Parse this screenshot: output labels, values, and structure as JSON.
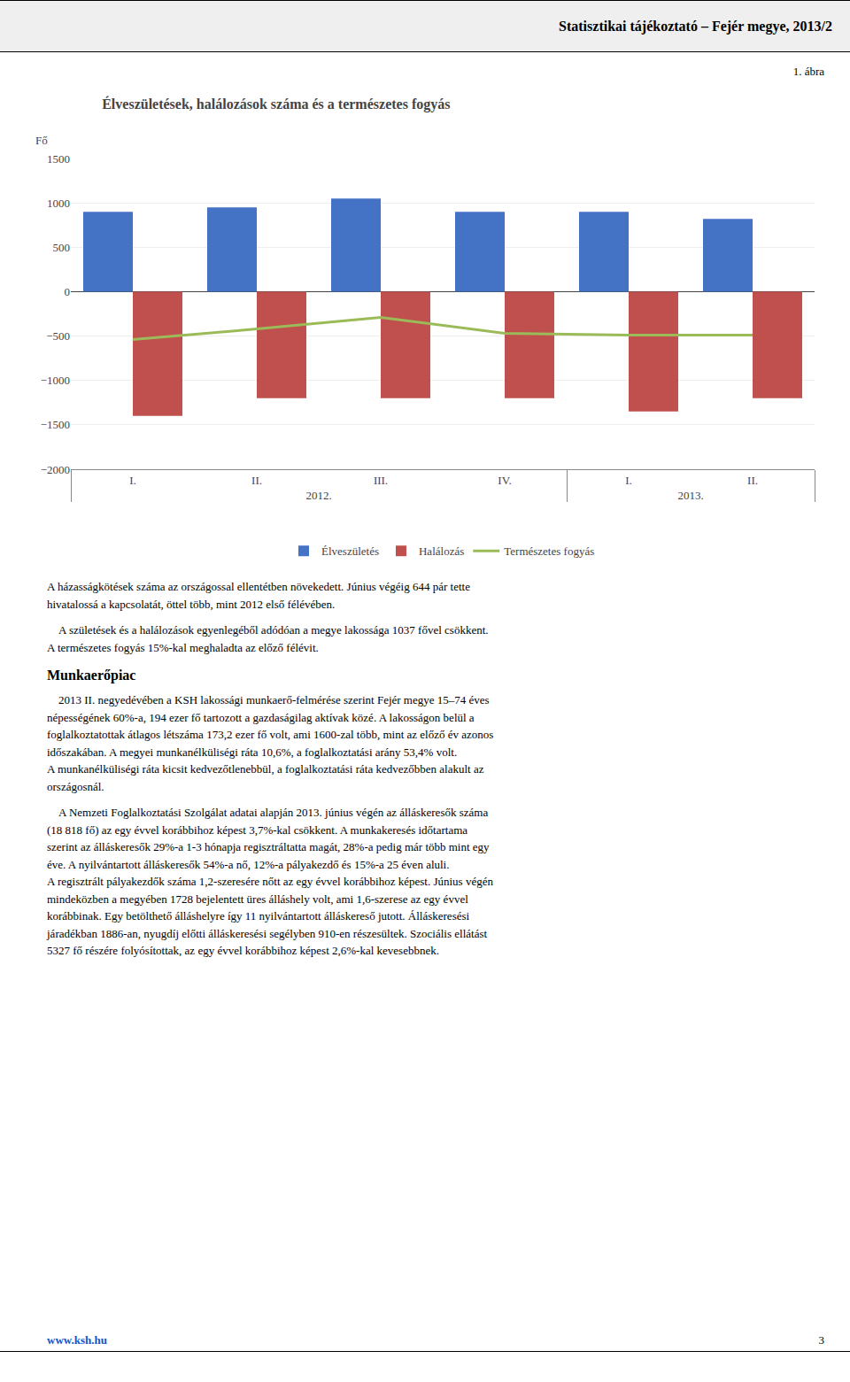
{
  "chart_data": {
    "type": "bar",
    "header": "Statisztikai tájékoztató – Fejér megye, 2013/2",
    "figure_label": "1. ábra",
    "title": "Élveszületések, halálozások száma és a természetes fogyás",
    "ylabel": "Fő",
    "categories": [
      "I.",
      "II.",
      "III.",
      "IV.",
      "I.",
      "II."
    ],
    "x_groups": [
      "2012.",
      "2012.",
      "2012.",
      "2012.",
      "2013.",
      "2013."
    ],
    "series": [
      {
        "name": "Élveszületés",
        "type": "bar",
        "color": "#4472C4",
        "values": [
          900,
          950,
          1050,
          900,
          900,
          820
        ]
      },
      {
        "name": "Halálozás",
        "type": "bar",
        "color": "#C0504D",
        "values": [
          -1400,
          -1200,
          -1200,
          -1200,
          -1350,
          -1200
        ]
      },
      {
        "name": "Természetes fogyás",
        "type": "line",
        "color": "#9BBB59",
        "values": [
          -540,
          -420,
          -290,
          -470,
          -490,
          -490
        ]
      }
    ],
    "ylim": [
      -2000,
      1500
    ],
    "yticks": [
      {
        "value": -2000,
        "label": "−2000"
      },
      {
        "value": -1500,
        "label": "−1500"
      },
      {
        "value": -1000,
        "label": "−1000"
      },
      {
        "value": -500,
        "label": "−500"
      },
      0,
      500,
      1000,
      1500
    ],
    "grid": true,
    "legend": "bottom",
    "body": [
      {
        "text": "A házasságkötések száma az országossal ellentétben növekedett. Június végéig 644 pár tette\nhivatalossá a kapcsolatát, öttel több, mint 2012 első félévében."
      },
      {
        "text": "    A születések és a halálozások egyenlegéből adódóan a megye lakossága 1037 fővel csökkent.\nA természetes fogyás 15%-kal meghaladta az előző félévit."
      },
      {
        "heading": "Munkaerőpiac"
      },
      {
        "text": "    2013 II. negyedévében a KSH lakossági munkaerő-felmérése szerint Fejér megye 15–74 éves\nnépességének 60%-a, 194 ezer fő tartozott a gazdaságilag aktívak közé. A lakosságon belül a\nfoglalkoztatottak átlagos létszáma 173,2 ezer fő volt, ami 1600-zal több, mint az előző év azonos\nidőszakában. A megyei munkanélküliségi ráta 10,6%, a foglalkoztatási arány 53,4% volt.\nA munkanélküliségi ráta kicsit kedvezőtlenebbül, a foglalkoztatási ráta kedvezőbben alakult az\nországosnál."
      },
      {
        "text": "    A Nemzeti Foglalkoztatási Szolgálat adatai alapján 2013. június végén az álláskeresők száma\n(18 818 fő) az egy évvel korábbihoz képest 3,7%-kal csökkent. A munkakeresés időtartama\nszerint az álláskeresők 29%-a 1-3 hónapja regisztráltatta magát, 28%-a pedig már több mint egy\néve. A nyilvántartott álláskeresők 54%-a nő, 12%-a pályakezdő és 15%-a 25 éven aluli.\nA regisztrált pályakezdők száma 1,2-szeresére nőtt az egy évvel korábbihoz képest. Június végén\nmindeközben a megyében 1728 bejelentett üres álláshely volt, ami 1,6-szerese az egy évvel\nkorábbinak. Egy betölthető álláshelyre így 11 nyilvántartott álláskereső jutott. Álláskeresési\njáradékban 1886-an, nyugdíj előtti álláskeresési segélyben 910-en részesültek. Szociális ellátást\n5327 fő részére folyósítottak, az egy évvel korábbihoz képest 2,6%-kal kevesebbnek."
      }
    ],
    "footer_url": "www.ksh.hu",
    "footer_page": "3"
  }
}
